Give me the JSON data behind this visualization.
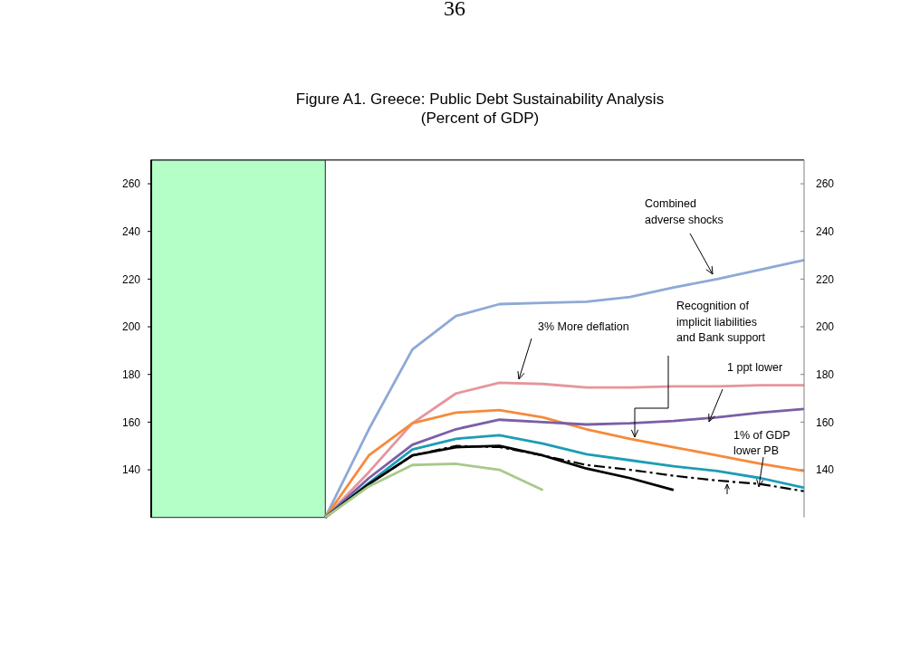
{
  "chart_data": {
    "type": "line",
    "title": "Figure A1. Greece: Public Debt Sustainability Analysis",
    "subtitle": "(Percent of GDP)",
    "categories": [
      null,
      null,
      null,
      null,
      null,
      null,
      null,
      null,
      null,
      null,
      null,
      null,
      null,
      null,
      null,
      null
    ],
    "series": [
      {
        "color": "#8ea9d6",
        "values": [
          null,
          null,
          null,
          null,
          120,
          157,
          190.5,
          204.5,
          209.5,
          210,
          210.5,
          212.5,
          216.5,
          220,
          224,
          228
        ]
      },
      {
        "color": "#e6959b",
        "values": [
          null,
          null,
          null,
          null,
          120,
          139,
          159.5,
          172,
          176.5,
          176,
          174.5,
          174.5,
          175,
          175,
          175.5,
          175.5
        ]
      },
      {
        "color": "#f68a3b",
        "values": [
          null,
          null,
          null,
          null,
          120,
          146,
          159.5,
          164,
          165,
          162,
          157,
          153,
          149.5,
          146,
          142.5,
          139.5
        ]
      },
      {
        "color": "#7b5ea7",
        "values": [
          null,
          null,
          null,
          null,
          120,
          136.5,
          150.5,
          157,
          161,
          160,
          159,
          159.5,
          160.5,
          162,
          164,
          165.5
        ]
      },
      {
        "color": "#1c9db5",
        "values": [
          null,
          null,
          null,
          null,
          120,
          134.5,
          148.5,
          153,
          154.5,
          151,
          146.5,
          144,
          141.5,
          139.5,
          136.5,
          132.5
        ]
      },
      {
        "color": "#000000",
        "values": [
          null,
          null,
          null,
          null,
          120,
          134,
          146,
          149.5,
          150,
          146,
          140.5,
          136.5,
          131.5,
          null,
          null,
          null
        ]
      },
      {
        "color": "#000000",
        "line_style": "dashdot",
        "values": [
          null,
          null,
          null,
          null,
          120,
          134,
          146,
          150,
          149.5,
          146,
          142,
          140,
          137.5,
          135.5,
          134,
          131
        ]
      },
      {
        "color": "#a9c98a",
        "values": [
          null,
          null,
          null,
          null,
          120,
          133,
          142,
          142.5,
          140,
          131.5,
          null,
          null,
          null,
          null,
          null,
          null
        ]
      }
    ],
    "ylim": [
      120,
      270
    ],
    "yticks": [
      140,
      160,
      180,
      200,
      220,
      240,
      260
    ],
    "y2lim": [
      120,
      270
    ],
    "y2ticks": [
      140,
      160,
      180,
      200,
      220,
      240,
      260
    ],
    "annotations": [
      "36",
      "Combined adverse shocks",
      "3% More deflation",
      "Recognition of implicit liabilities and Bank support",
      "1 ppt lower",
      "1% of GDP lower PB"
    ]
  }
}
